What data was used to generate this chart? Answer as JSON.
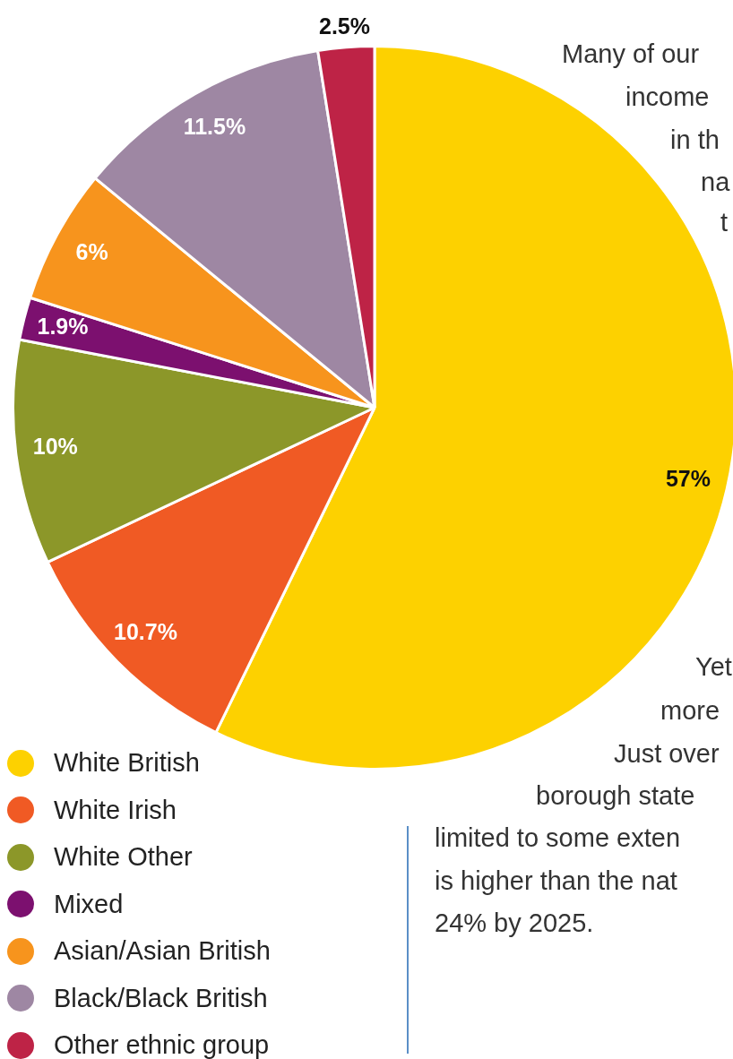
{
  "chart_data": {
    "type": "pie",
    "categories": [
      "White British",
      "White Irish",
      "White Other",
      "Mixed",
      "Asian/Asian British",
      "Black/Black British",
      "Other ethnic group"
    ],
    "values": [
      57,
      10.7,
      10,
      1.9,
      6,
      11.5,
      2.5
    ],
    "colors": [
      "#fdd100",
      "#f05a24",
      "#8c9729",
      "#7c106f",
      "#f7941d",
      "#9e87a3",
      "#be2346"
    ],
    "value_labels": [
      "57%",
      "10.7%",
      "10%",
      "1.9%",
      "6%",
      "11.5%",
      "2.5%"
    ],
    "legend": "bottom left",
    "annotations": [
      "Many of our",
      "income",
      "in th",
      "na",
      "t",
      "Yet",
      "more",
      "Just over",
      "borough state",
      "limited to some exten",
      "is higher than the nat",
      "24% by 2025."
    ]
  }
}
